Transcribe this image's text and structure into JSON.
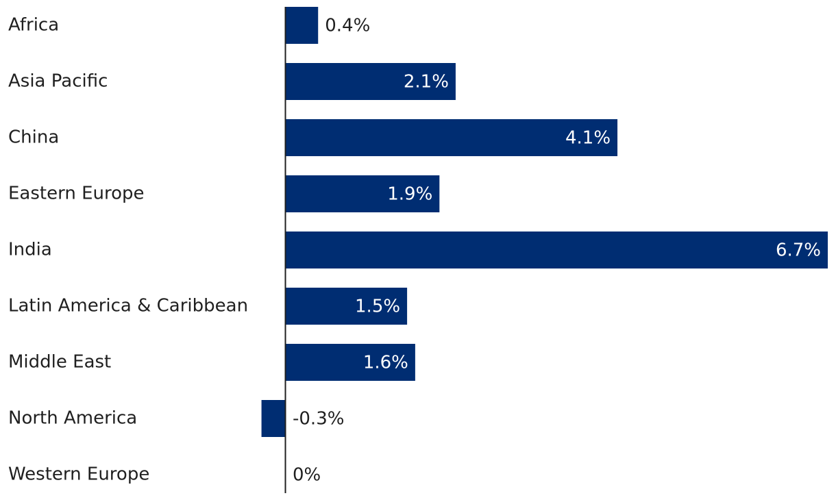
{
  "chart_data": {
    "type": "bar",
    "orientation": "horizontal",
    "categories": [
      "Africa",
      "Asia Pacific",
      "China",
      "Eastern Europe",
      "India",
      "Latin America & Caribbean",
      "Middle East",
      "North America",
      "Western Europe"
    ],
    "values": [
      0.4,
      2.1,
      4.1,
      1.9,
      6.7,
      1.5,
      1.6,
      -0.3,
      0
    ],
    "value_labels": [
      "0.4%",
      "2.1%",
      "4.1%",
      "1.9%",
      "6.7%",
      "1.5%",
      "1.6%",
      "-0.3%",
      "0%"
    ],
    "xlim": [
      -0.3,
      6.7
    ],
    "grid": false,
    "legend": "none",
    "bar_color": "#002D72",
    "label_color_inside": "#ffffff",
    "label_color_outside": "#1f1f1f"
  }
}
